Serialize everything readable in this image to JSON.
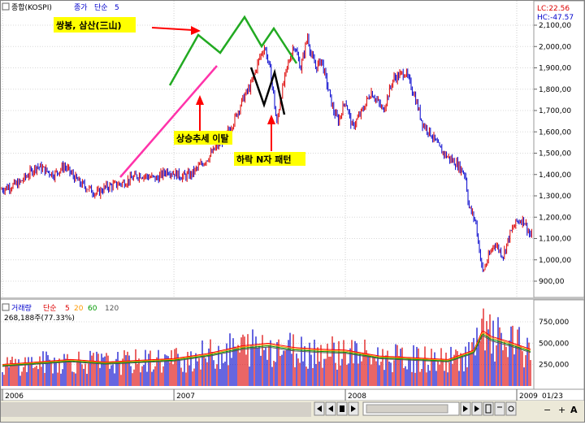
{
  "price_panel": {
    "instrument": "종합(KOSPI)",
    "indicator_name": "종가",
    "indicator_type": "단순",
    "indicator_period": "5",
    "lc_text": "LC:22.56",
    "hc_text": "HC:-47.57"
  },
  "annotations": {
    "double_triple": "쌍봉, 삼산(三山)",
    "trend_break": "상승추세 이탈",
    "n_pattern": "하락 N자 패턴"
  },
  "volume_panel": {
    "name": "거래량",
    "type": "단순",
    "periods": [
      "5",
      "20",
      "60",
      "120"
    ],
    "period_colors": [
      "#ff0000",
      "#ff9900",
      "#009900",
      "#555555"
    ],
    "current_value": "268,188주(77.33%)"
  },
  "x_axis": {
    "labels": [
      "2006",
      "2007",
      "2008",
      "2009"
    ],
    "right_label": "01/23"
  },
  "zoom_buttons": [
    "−",
    "+",
    "A"
  ],
  "colors": {
    "up": "#dd0000",
    "down": "#0000cc",
    "trend_line": "#ff33aa",
    "pattern_green": "#22aa22",
    "pattern_black": "#000000",
    "arrow": "#ff0000",
    "label_bg": "#ffff00"
  },
  "chart_data": [
    {
      "type": "line",
      "series_style": "ohlc-bars",
      "y_ticks": [
        "2,100,00",
        "2,000,00",
        "1,900,00",
        "1,800,00",
        "1,700,00",
        "1,600,00",
        "1,500,00",
        "1,400,00",
        "1,300,00",
        "1,200,00",
        "1,100,00",
        "1,000,00",
        "900,00"
      ],
      "ylim": [
        860,
        2180
      ],
      "xlim": [
        2005.99,
        2009.09
      ],
      "x": [
        2005.99,
        2006.1,
        2006.2,
        2006.3,
        2006.36,
        2006.45,
        2006.55,
        2006.6,
        2006.7,
        2006.8,
        2006.9,
        2006.96,
        2007.05,
        2007.1,
        2007.2,
        2007.3,
        2007.35,
        2007.4,
        2007.45,
        2007.5,
        2007.53,
        2007.56,
        2007.58,
        2007.6,
        2007.62,
        2007.66,
        2007.7,
        2007.74,
        2007.78,
        2007.8,
        2007.83,
        2007.86,
        2007.9,
        2007.93,
        2007.96,
        2008.0,
        2008.04,
        2008.1,
        2008.15,
        2008.22,
        2008.28,
        2008.35,
        2008.4,
        2008.45,
        2008.5,
        2008.55,
        2008.6,
        2008.65,
        2008.7,
        2008.72,
        2008.76,
        2008.8,
        2008.83,
        2008.87,
        2008.92,
        2008.96,
        2009.0,
        2009.04,
        2009.08
      ],
      "y": [
        1330,
        1360,
        1440,
        1400,
        1440,
        1360,
        1310,
        1340,
        1360,
        1400,
        1380,
        1420,
        1390,
        1400,
        1480,
        1580,
        1650,
        1750,
        1820,
        1950,
        2000,
        1890,
        1780,
        1630,
        1750,
        1900,
        2010,
        1900,
        2050,
        1960,
        1900,
        1940,
        1800,
        1700,
        1650,
        1750,
        1620,
        1700,
        1790,
        1700,
        1850,
        1880,
        1780,
        1640,
        1590,
        1520,
        1480,
        1450,
        1400,
        1250,
        1180,
        940,
        1000,
        1080,
        1020,
        1120,
        1180,
        1190,
        1110
      ]
    },
    {
      "type": "bar",
      "y_ticks": [
        "750,000",
        "500,000",
        "250,000"
      ],
      "ylim": [
        0,
        900000
      ],
      "xlim": [
        2005.99,
        2009.09
      ],
      "x": [
        2005.99,
        2006.2,
        2006.4,
        2006.6,
        2006.8,
        2007.0,
        2007.2,
        2007.4,
        2007.55,
        2007.7,
        2007.85,
        2008.0,
        2008.2,
        2008.4,
        2008.6,
        2008.75,
        2008.8,
        2008.85,
        2008.95,
        2009.08
      ],
      "values": [
        250000,
        280000,
        310000,
        280000,
        300000,
        320000,
        380000,
        470000,
        500000,
        450000,
        430000,
        420000,
        350000,
        330000,
        310000,
        420000,
        650000,
        580000,
        520000,
        430000
      ]
    }
  ]
}
